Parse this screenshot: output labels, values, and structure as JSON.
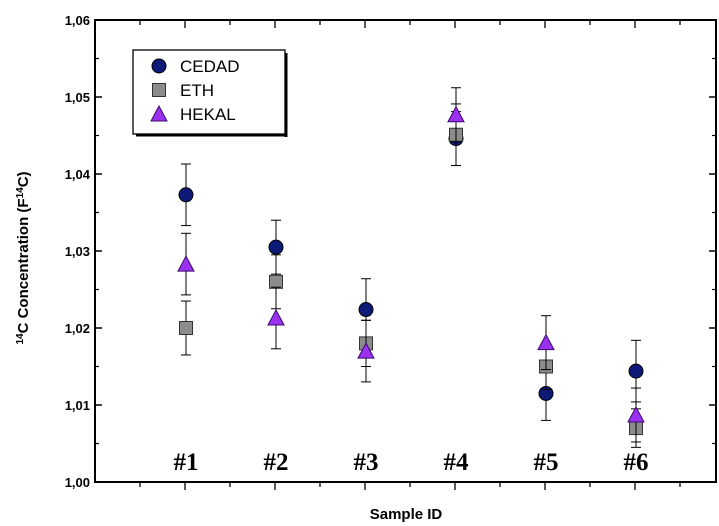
{
  "chart_data": {
    "type": "scatter",
    "xlabel": "Sample ID",
    "ylabel": {
      "sup1": "14",
      "text1": "C Concentration (F",
      "sup2": "14",
      "text2": "C)"
    },
    "ylim": [
      1.0,
      1.06
    ],
    "yticks": [
      "1,00",
      "1,01",
      "1,02",
      "1,03",
      "1,04",
      "1,05",
      "1,06"
    ],
    "categories": [
      "#1",
      "#2",
      "#3",
      "#4",
      "#5",
      "#6"
    ],
    "legend_position": "top-left",
    "grid": false,
    "series": [
      {
        "name": "CEDAD",
        "marker": "circle",
        "color": "#0d1a78",
        "values": [
          1.0373,
          1.0305,
          1.0224,
          1.0446,
          1.0115,
          1.0144
        ],
        "errors": [
          0.004,
          0.0035,
          0.004,
          0.0035,
          0.0035,
          0.004
        ]
      },
      {
        "name": "ETH",
        "marker": "square",
        "color": "#8c8c8c",
        "values": [
          1.02,
          1.026,
          1.018,
          1.0451,
          1.015,
          1.007
        ],
        "errors": [
          0.0035,
          0.0035,
          0.003,
          0.004,
          0.003,
          0.0025
        ]
      },
      {
        "name": "HEKAL",
        "marker": "triangle",
        "color": "#9b30ee",
        "values": [
          1.0283,
          1.0213,
          1.017,
          1.0477,
          1.0181,
          1.0087
        ],
        "errors": [
          0.004,
          0.004,
          0.004,
          0.0035,
          0.0035,
          0.0035
        ]
      }
    ]
  }
}
